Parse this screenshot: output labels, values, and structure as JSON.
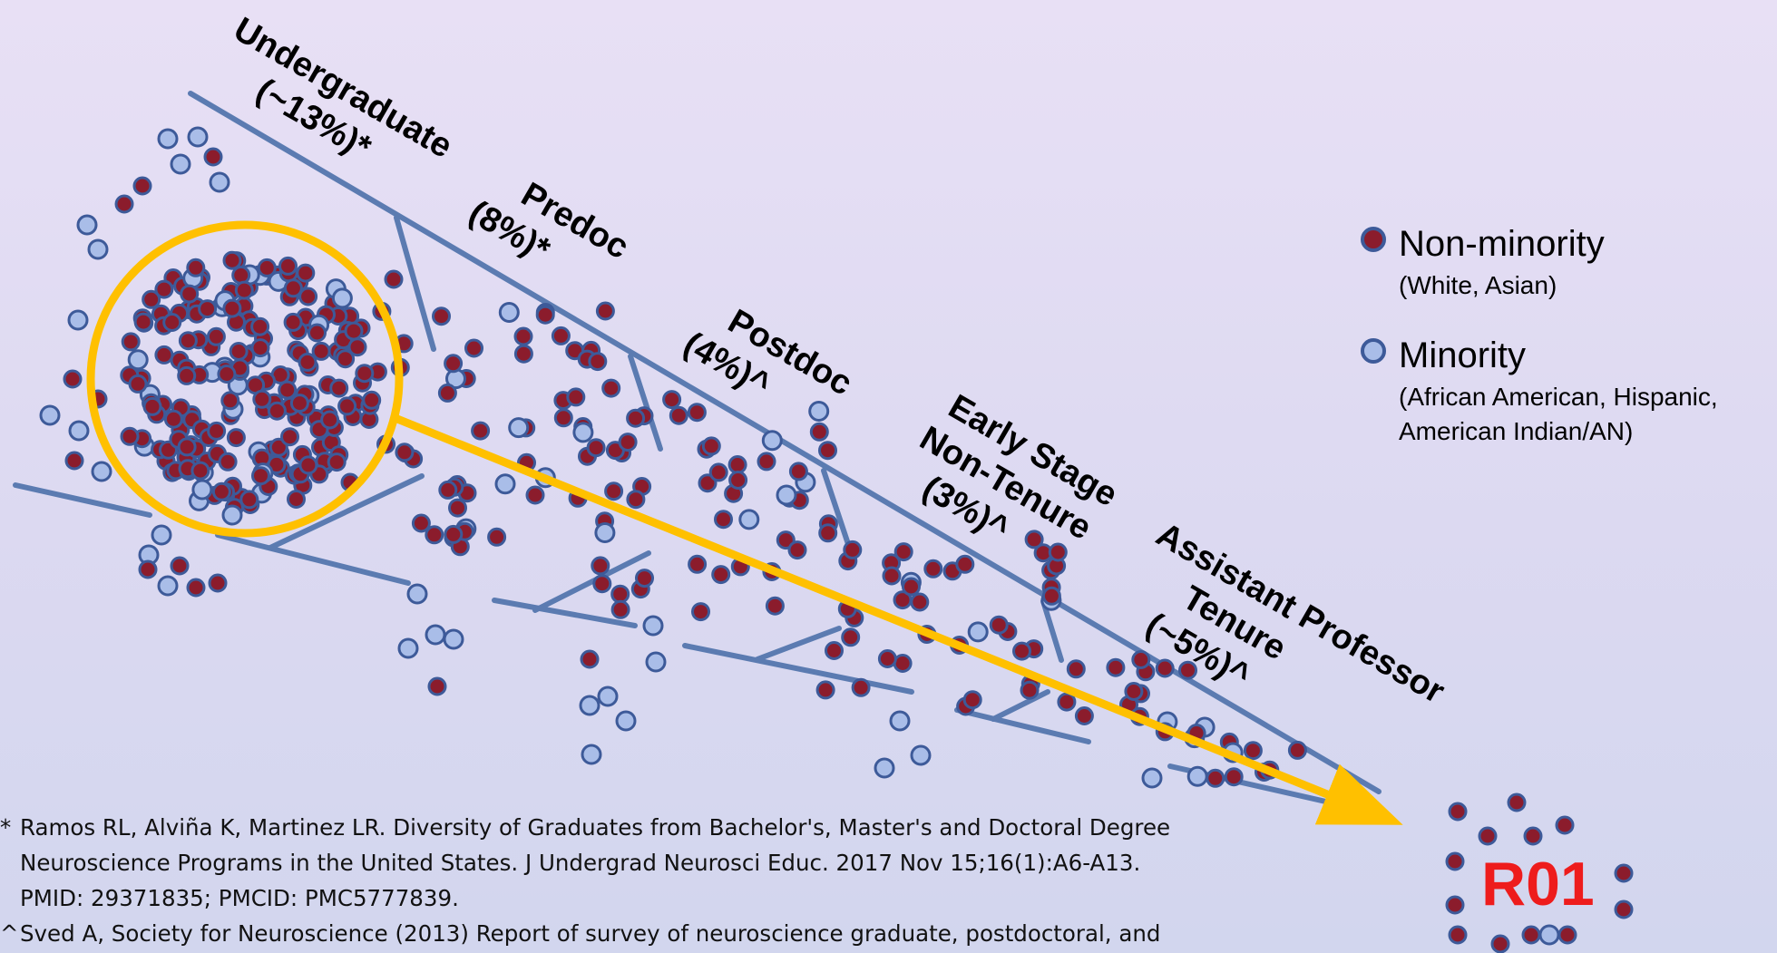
{
  "stages": [
    {
      "name": "Undergraduate",
      "pct": "(~13%)*"
    },
    {
      "name": "Predoc",
      "pct": "(8%)*"
    },
    {
      "name": "Postdoc",
      "pct": "(4%)^"
    },
    {
      "name_line1": "Early Stage",
      "name_line2": "Non-Tenure",
      "pct": "(3%)^"
    },
    {
      "name_line1": "Assistant Professor",
      "name_line2": "Tenure",
      "pct": "(~5%)^"
    }
  ],
  "legend": {
    "non_minority": {
      "label": "Non-minority",
      "sub": "(White, Asian)",
      "color": "#8b1c2c"
    },
    "minority": {
      "label": "Minority",
      "sub_line1": "(African American, Hispanic,",
      "sub_line2": "American Indian/AN)",
      "color": "#a9bde8"
    }
  },
  "target": {
    "label": "R01"
  },
  "references": [
    {
      "mark": "*",
      "lines": [
        "Ramos RL, Alviña K, Martinez LR. Diversity of Graduates from Bachelor's, Master's and Doctoral Degree",
        "Neuroscience Programs in the United States. J Undergrad Neurosci Educ. 2017 Nov 15;16(1):A6-A13.",
        "PMID: 29371835; PMCID: PMC5777839."
      ]
    },
    {
      "mark": "^",
      "lines": [
        "Sved A, Society for Neuroscience (2013) Report of survey of neuroscience graduate, postdoctoral, and"
      ]
    }
  ],
  "colors": {
    "pipe": "#5b7bb1",
    "arrow": "#ffc000",
    "dot_stroke": "#3d5a99",
    "r01": "#ee1c1c"
  }
}
